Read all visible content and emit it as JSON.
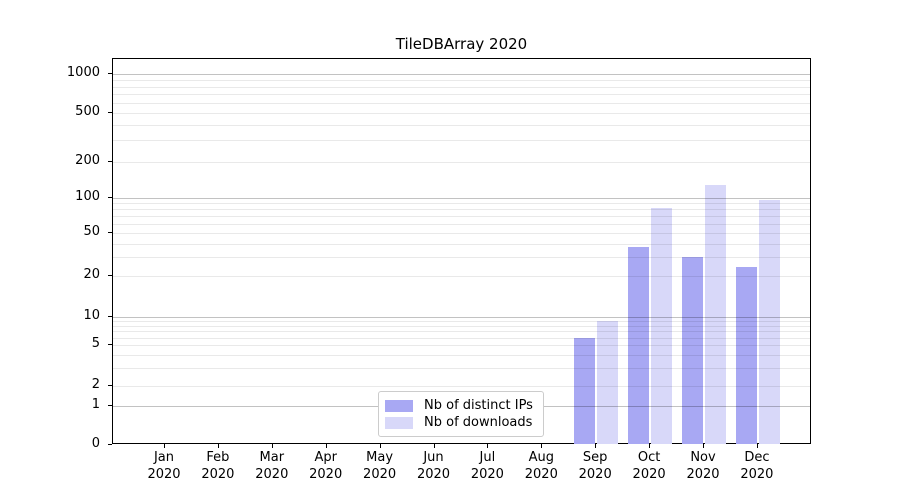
{
  "chart_data": {
    "type": "bar",
    "title": "TileDBArray 2020",
    "categories": [
      "Jan",
      "Feb",
      "Mar",
      "Apr",
      "May",
      "Jun",
      "Jul",
      "Aug",
      "Sep",
      "Oct",
      "Nov",
      "Dec"
    ],
    "category_year": "2020",
    "series": [
      {
        "name": "Nb of distinct IPs",
        "color": "#a8a8f3",
        "values": [
          0,
          0,
          0,
          0,
          0,
          0,
          0,
          0,
          6,
          37,
          30,
          24
        ]
      },
      {
        "name": "Nb of downloads",
        "color": "#d8d8f9",
        "values": [
          0,
          0,
          0,
          0,
          0,
          0,
          0,
          0,
          9,
          82,
          128,
          96
        ]
      }
    ],
    "y_axis": {
      "scale": "symlog",
      "ticks": [
        0,
        1,
        2,
        5,
        10,
        20,
        50,
        100,
        200,
        500,
        1000
      ],
      "major_gridlines": [
        1,
        10,
        100,
        1000
      ],
      "minor_gridlines": [
        2,
        3,
        4,
        5,
        6,
        7,
        8,
        9,
        20,
        30,
        40,
        50,
        60,
        70,
        80,
        90,
        200,
        300,
        400,
        500,
        600,
        700,
        800,
        900
      ],
      "ylim": [
        0,
        1400
      ]
    },
    "x_axis": {
      "label_lines": 2
    },
    "legend": {
      "position": "bottom-center",
      "entries": [
        "Nb of distinct IPs",
        "Nb of downloads"
      ]
    },
    "grid": true
  },
  "colors": {
    "bar_ips": "#a8a8f3",
    "bar_downloads": "#d8d8f9",
    "spine": "#000000",
    "grid_major": "#c2c2c2",
    "grid_minor": "#ebebeb",
    "legend_border": "#cccccc",
    "text": "#000000",
    "background": "#ffffff"
  }
}
